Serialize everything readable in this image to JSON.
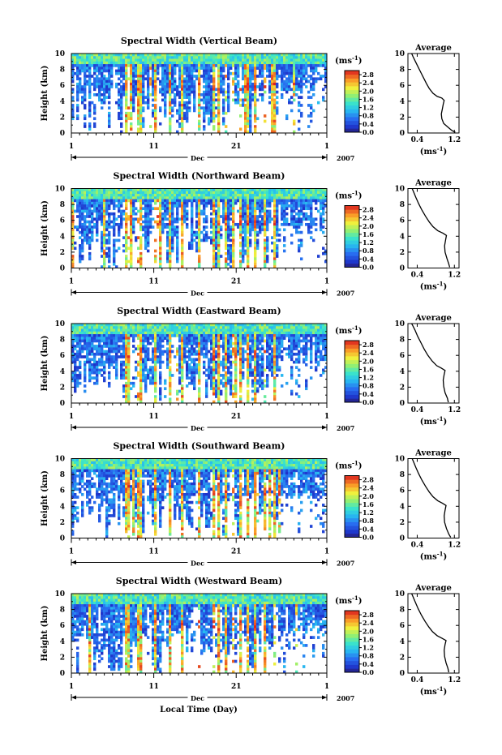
{
  "figure": {
    "xlabel_bottom": "Local Time (Day)",
    "month_label": "Dec",
    "year_label": "2007",
    "colorbar_unit": "(ms",
    "colorbar_unit_exp": "-1",
    "colorbar_unit_close": ")",
    "avg_xlabel": "(ms",
    "avg_xlabel_exp": "-1",
    "avg_xlabel_close": ")"
  },
  "chart_data": [
    {
      "type": "heatmap",
      "title": "Spectral Width (Vertical Beam)",
      "ylabel": "Height (km)",
      "xlim": [
        1,
        32
      ],
      "ylim": [
        0,
        10
      ],
      "xticks": [
        "1",
        "11",
        "21",
        "1"
      ],
      "yticks": [
        "0",
        "2",
        "4",
        "6",
        "8",
        "10"
      ],
      "colorbar": {
        "unit": "ms^-1",
        "ticks": [
          "0.0",
          "0.4",
          "0.8",
          "1.2",
          "1.6",
          "2.0",
          "2.4",
          "2.8"
        ],
        "range": [
          0,
          3.0
        ]
      },
      "average": {
        "title": "Average",
        "xlim": [
          0.2,
          1.3
        ],
        "xticks": [
          "0.4",
          "1.2"
        ],
        "ylim": [
          0,
          10
        ],
        "yticks": [
          "0",
          "2",
          "4",
          "6",
          "8",
          "10"
        ],
        "profile": [
          [
            1.22,
            0.1
          ],
          [
            1.15,
            0.3
          ],
          [
            1.05,
            0.8
          ],
          [
            0.97,
            1.2
          ],
          [
            0.93,
            1.8
          ],
          [
            0.92,
            2.4
          ],
          [
            0.94,
            3.0
          ],
          [
            0.96,
            3.6
          ],
          [
            0.98,
            4.1
          ],
          [
            0.93,
            4.4
          ],
          [
            0.83,
            4.6
          ],
          [
            0.74,
            5.0
          ],
          [
            0.66,
            5.6
          ],
          [
            0.6,
            6.2
          ],
          [
            0.54,
            6.9
          ],
          [
            0.48,
            7.6
          ],
          [
            0.42,
            8.3
          ],
          [
            0.36,
            9.0
          ],
          [
            0.31,
            9.6
          ],
          [
            0.28,
            10.0
          ]
        ]
      }
    },
    {
      "type": "heatmap",
      "title": "Spectral Width (Northward Beam)",
      "ylabel": "Height (km)",
      "xlim": [
        1,
        32
      ],
      "ylim": [
        0,
        10
      ],
      "xticks": [
        "1",
        "11",
        "21",
        "1"
      ],
      "yticks": [
        "0",
        "2",
        "4",
        "6",
        "8",
        "10"
      ],
      "colorbar": {
        "unit": "ms^-1",
        "ticks": [
          "0.0",
          "0.4",
          "0.8",
          "1.2",
          "1.6",
          "2.0",
          "2.4",
          "2.8"
        ],
        "range": [
          0,
          3.0
        ]
      },
      "average": {
        "title": "Average",
        "xlim": [
          0.2,
          1.3
        ],
        "xticks": [
          "0.4",
          "1.2"
        ],
        "ylim": [
          0,
          10
        ],
        "yticks": [
          "0",
          "2",
          "4",
          "6",
          "8",
          "10"
        ],
        "profile": [
          [
            1.1,
            0.1
          ],
          [
            1.08,
            0.5
          ],
          [
            1.04,
            1.2
          ],
          [
            1.0,
            2.0
          ],
          [
            0.99,
            2.8
          ],
          [
            1.01,
            3.5
          ],
          [
            1.03,
            4.1
          ],
          [
            0.95,
            4.4
          ],
          [
            0.84,
            4.7
          ],
          [
            0.74,
            5.2
          ],
          [
            0.66,
            5.8
          ],
          [
            0.58,
            6.5
          ],
          [
            0.5,
            7.3
          ],
          [
            0.43,
            8.1
          ],
          [
            0.37,
            8.9
          ],
          [
            0.32,
            9.6
          ],
          [
            0.29,
            10.0
          ]
        ]
      }
    },
    {
      "type": "heatmap",
      "title": "Spectral Width (Eastward Beam)",
      "ylabel": "Height (km)",
      "xlim": [
        1,
        32
      ],
      "ylim": [
        0,
        10
      ],
      "xticks": [
        "1",
        "11",
        "21",
        "1"
      ],
      "yticks": [
        "0",
        "2",
        "4",
        "6",
        "8",
        "10"
      ],
      "colorbar": {
        "unit": "ms^-1",
        "ticks": [
          "0.0",
          "0.4",
          "0.8",
          "1.2",
          "1.6",
          "2.0",
          "2.4",
          "2.8"
        ],
        "range": [
          0,
          3.0
        ]
      },
      "average": {
        "title": "Average",
        "xlim": [
          0.2,
          1.3
        ],
        "xticks": [
          "0.4",
          "1.2"
        ],
        "ylim": [
          0,
          10
        ],
        "yticks": [
          "0",
          "2",
          "4",
          "6",
          "8",
          "10"
        ],
        "profile": [
          [
            1.07,
            0.1
          ],
          [
            1.05,
            0.6
          ],
          [
            1.0,
            1.3
          ],
          [
            0.97,
            2.1
          ],
          [
            0.96,
            2.9
          ],
          [
            0.98,
            3.6
          ],
          [
            1.0,
            4.1
          ],
          [
            0.92,
            4.4
          ],
          [
            0.82,
            4.7
          ],
          [
            0.72,
            5.3
          ],
          [
            0.63,
            6.0
          ],
          [
            0.55,
            6.8
          ],
          [
            0.48,
            7.6
          ],
          [
            0.41,
            8.4
          ],
          [
            0.35,
            9.2
          ],
          [
            0.3,
            9.8
          ],
          [
            0.28,
            10.0
          ]
        ]
      }
    },
    {
      "type": "heatmap",
      "title": "Spectral Width (Southward Beam)",
      "ylabel": "Height (km)",
      "xlim": [
        1,
        32
      ],
      "ylim": [
        0,
        10
      ],
      "xticks": [
        "1",
        "11",
        "21",
        "1"
      ],
      "yticks": [
        "0",
        "2",
        "4",
        "6",
        "8",
        "10"
      ],
      "colorbar": {
        "unit": "ms^-1",
        "ticks": [
          "0.0",
          "0.4",
          "0.8",
          "1.2",
          "1.6",
          "2.0",
          "2.4",
          "2.8"
        ],
        "range": [
          0,
          3.0
        ]
      },
      "average": {
        "title": "Average",
        "xlim": [
          0.2,
          1.3
        ],
        "xticks": [
          "0.4",
          "1.2"
        ],
        "ylim": [
          0,
          10
        ],
        "yticks": [
          "0",
          "2",
          "4",
          "6",
          "8",
          "10"
        ],
        "profile": [
          [
            1.12,
            0.1
          ],
          [
            1.08,
            0.5
          ],
          [
            1.03,
            1.2
          ],
          [
            0.99,
            2.0
          ],
          [
            0.98,
            2.8
          ],
          [
            1.0,
            3.5
          ],
          [
            1.02,
            4.1
          ],
          [
            0.94,
            4.4
          ],
          [
            0.84,
            4.7
          ],
          [
            0.74,
            5.2
          ],
          [
            0.66,
            5.8
          ],
          [
            0.58,
            6.5
          ],
          [
            0.5,
            7.3
          ],
          [
            0.43,
            8.1
          ],
          [
            0.37,
            8.9
          ],
          [
            0.32,
            9.6
          ],
          [
            0.29,
            10.0
          ]
        ]
      }
    },
    {
      "type": "heatmap",
      "title": "Spectral Width (Westward Beam)",
      "ylabel": "Height (km)",
      "xlim": [
        1,
        32
      ],
      "ylim": [
        0,
        10
      ],
      "xticks": [
        "1",
        "11",
        "21",
        "1"
      ],
      "yticks": [
        "0",
        "2",
        "4",
        "6",
        "8",
        "10"
      ],
      "colorbar": {
        "unit": "ms^-1",
        "ticks": [
          "0.0",
          "0.4",
          "0.8",
          "1.2",
          "1.6",
          "2.0",
          "2.4",
          "2.8"
        ],
        "range": [
          0,
          3.0
        ]
      },
      "average": {
        "title": "Average",
        "xlim": [
          0.2,
          1.3
        ],
        "xticks": [
          "0.4",
          "1.2"
        ],
        "ylim": [
          0,
          10
        ],
        "yticks": [
          "0",
          "2",
          "4",
          "6",
          "8",
          "10"
        ],
        "profile": [
          [
            1.08,
            0.1
          ],
          [
            1.06,
            0.6
          ],
          [
            1.02,
            1.3
          ],
          [
            0.99,
            2.1
          ],
          [
            0.98,
            2.9
          ],
          [
            1.0,
            3.6
          ],
          [
            1.02,
            4.1
          ],
          [
            0.93,
            4.4
          ],
          [
            0.83,
            4.7
          ],
          [
            0.73,
            5.2
          ],
          [
            0.65,
            5.8
          ],
          [
            0.57,
            6.5
          ],
          [
            0.49,
            7.3
          ],
          [
            0.42,
            8.1
          ],
          [
            0.36,
            8.9
          ],
          [
            0.31,
            9.6
          ],
          [
            0.28,
            10.0
          ]
        ]
      }
    }
  ]
}
